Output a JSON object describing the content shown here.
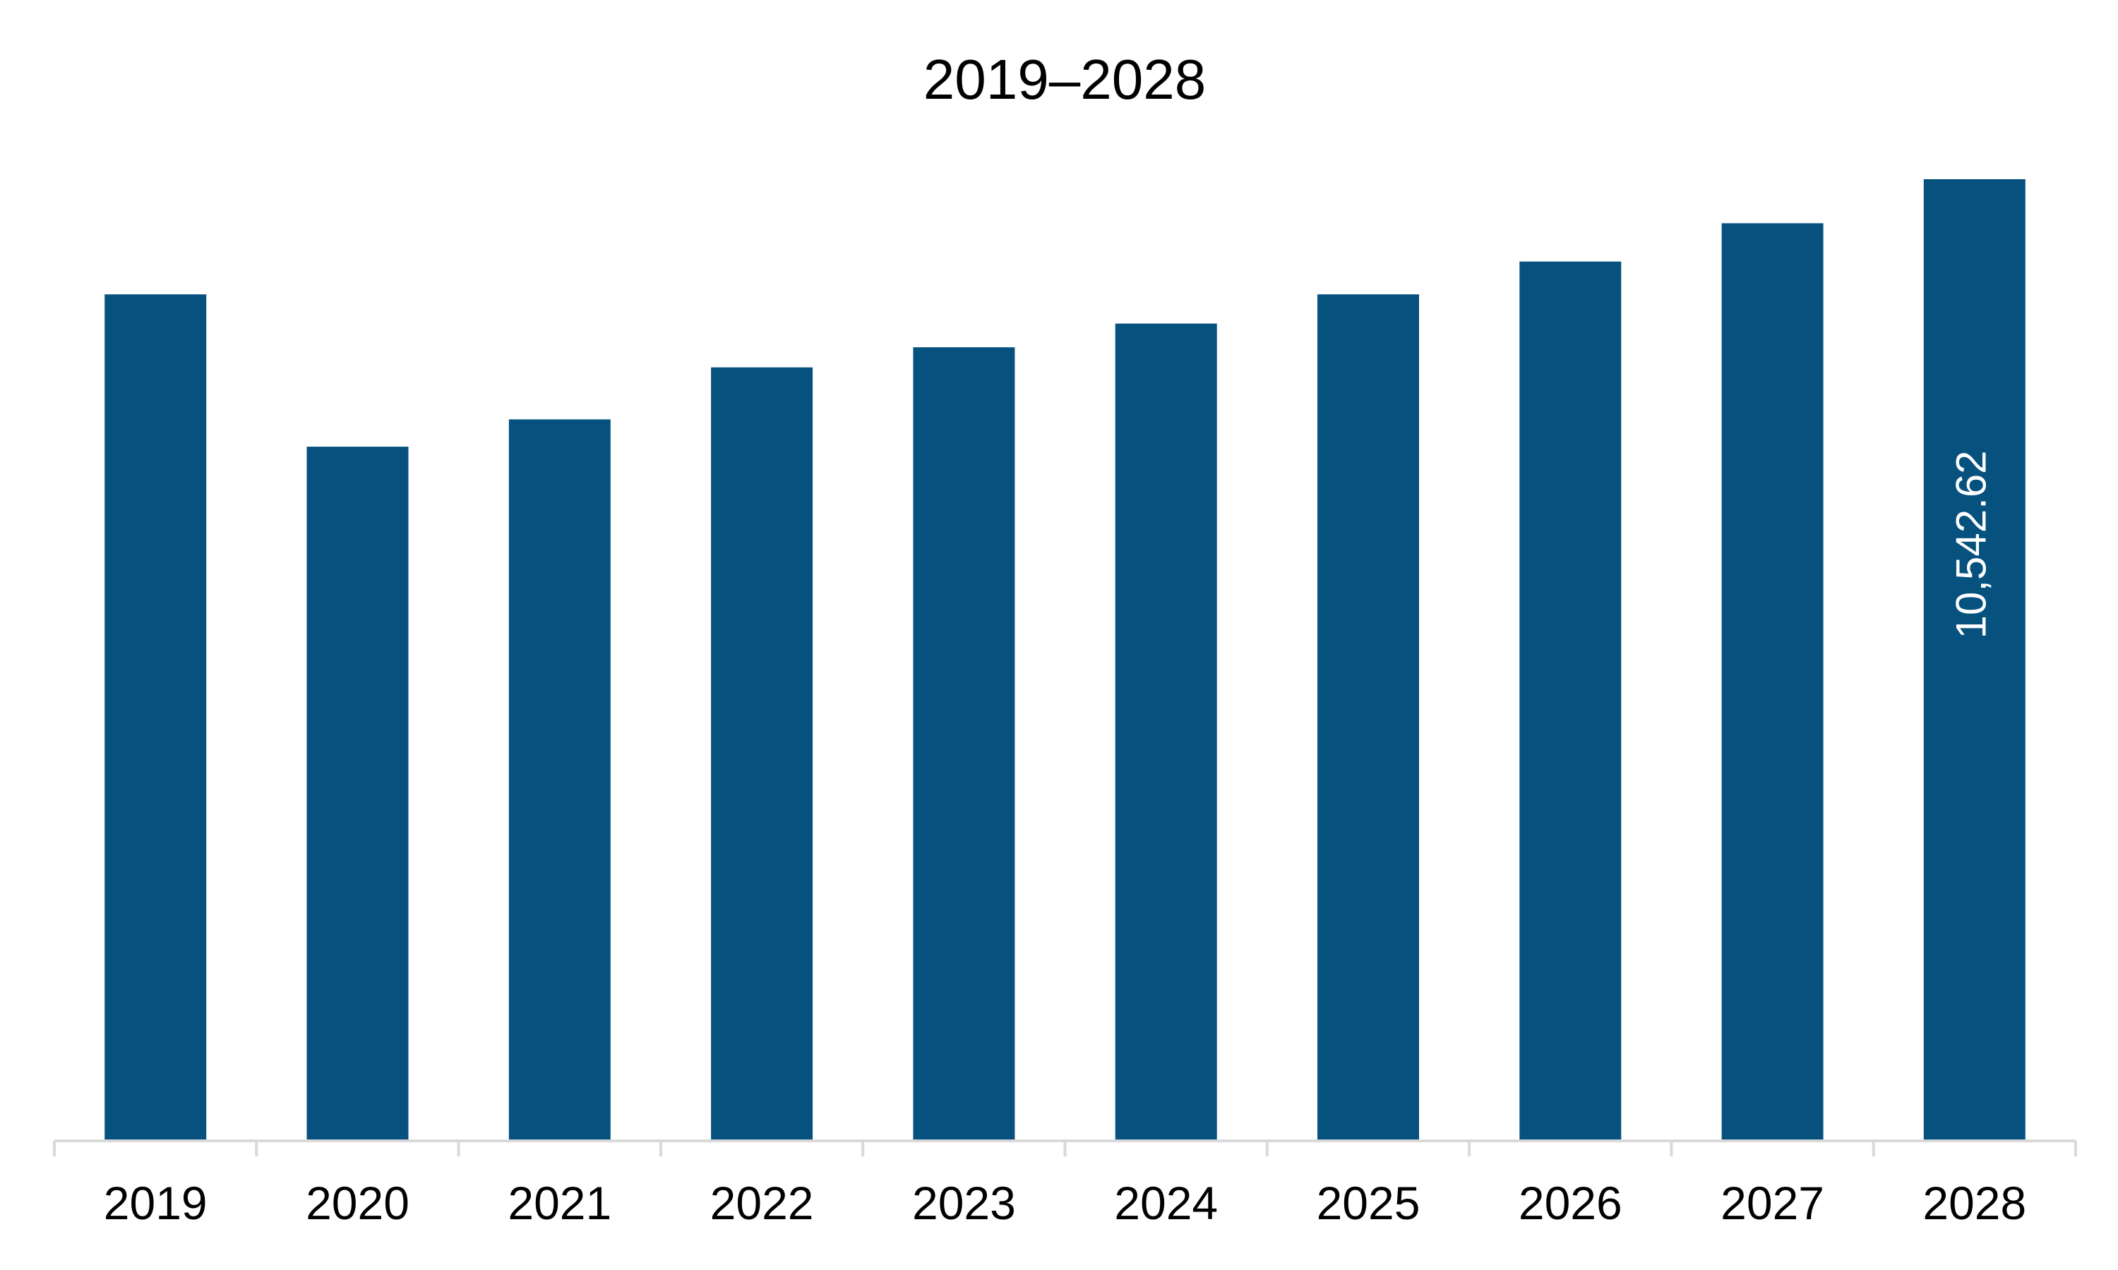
{
  "chart_data": {
    "type": "bar",
    "title": "2019–2028",
    "categories": [
      "2019",
      "2020",
      "2021",
      "2022",
      "2023",
      "2024",
      "2025",
      "2026",
      "2027",
      "2028"
    ],
    "series": [
      {
        "values": [
          9280,
          7610,
          7910,
          8480,
          8700,
          8960,
          9280,
          9640,
          10060,
          10542.62
        ]
      }
    ],
    "data_labels": [
      {
        "category": "2028",
        "text": "10,542.62"
      }
    ],
    "ylim": [
      0,
      10542.62
    ],
    "grid": false,
    "legend": "none",
    "bar_color": "#07517F",
    "axis_color": "#D9D9D9"
  }
}
